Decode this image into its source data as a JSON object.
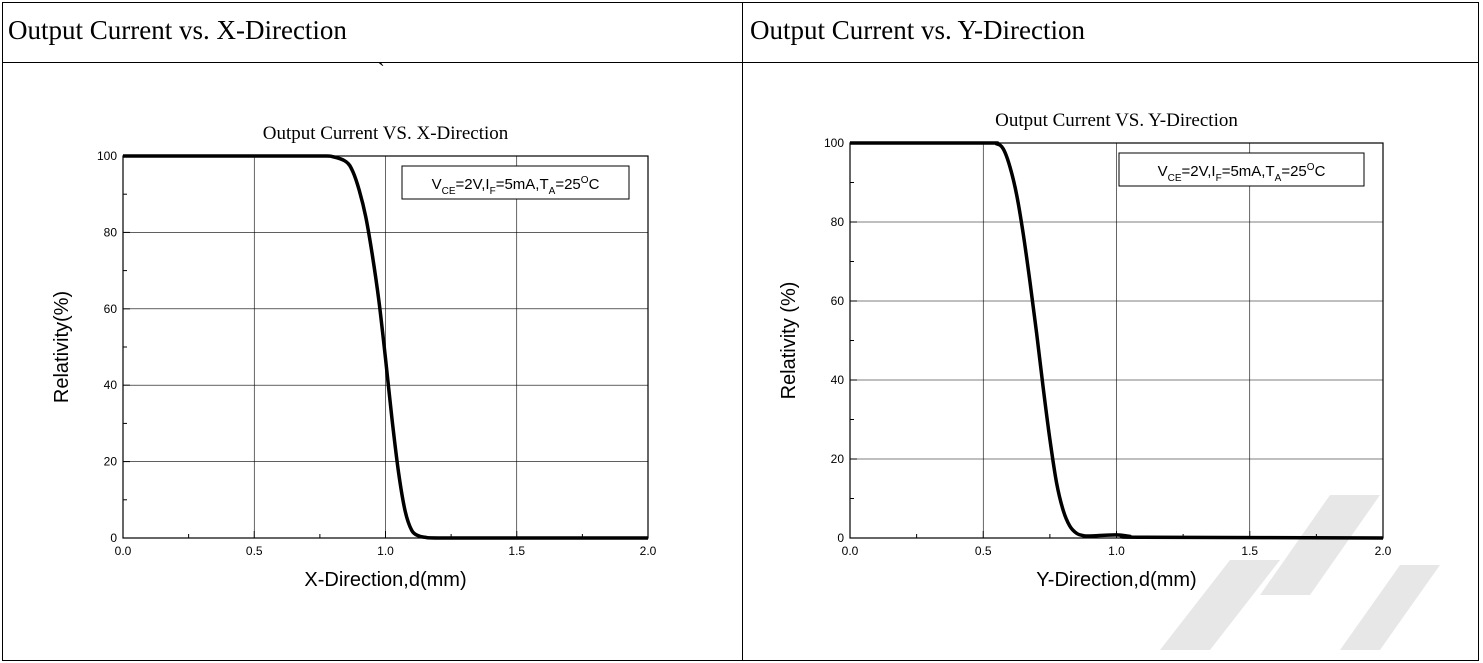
{
  "cells": {
    "left_title": "Output Current vs. X-Direction",
    "right_title": "Output Current vs. Y-Direction",
    "stray_mark": "`"
  },
  "chart_data": [
    {
      "type": "line",
      "title": "Output Current VS. X-Direction",
      "xlabel": "X-Direction,d(mm)",
      "ylabel": "Relativity(%)",
      "xlim": [
        0.0,
        2.0
      ],
      "ylim": [
        0,
        100
      ],
      "xticks": [
        "0.0",
        "0.5",
        "1.0",
        "1.5",
        "2.0"
      ],
      "yticks": [
        "0",
        "20",
        "40",
        "60",
        "80",
        "100"
      ],
      "grid": true,
      "legend_placement": "top-right",
      "annotation": {
        "V": "V",
        "CE": "CE",
        "eq1": "=2V,",
        "I": "I",
        "F": "F",
        "eq2": "=5mA,",
        "T": "T",
        "A": "A",
        "eq3": "=25",
        "O": "O",
        "C": "C"
      },
      "series": [
        {
          "x": [
            0.0,
            0.5,
            0.75,
            0.8,
            0.85,
            0.875,
            0.9,
            0.925,
            0.95,
            0.975,
            1.0,
            1.025,
            1.05,
            1.075,
            1.1,
            1.125,
            1.15,
            1.2,
            1.5,
            2.0
          ],
          "y": [
            100,
            100,
            100,
            99.8,
            98.5,
            96,
            91,
            84,
            74,
            62,
            47,
            31,
            17,
            7,
            2,
            0.6,
            0.2,
            0,
            0,
            0
          ]
        }
      ]
    },
    {
      "type": "line",
      "title": "Output Current VS. Y-Direction",
      "xlabel": "Y-Direction,d(mm)",
      "ylabel": "Relativity (%)",
      "xlim": [
        0.0,
        2.0
      ],
      "ylim": [
        0,
        100
      ],
      "xticks": [
        "0.0",
        "0.5",
        "1.0",
        "1.5",
        "2.0"
      ],
      "yticks": [
        "0",
        "20",
        "40",
        "60",
        "80",
        "100"
      ],
      "grid": true,
      "legend_placement": "top-right",
      "annotation": {
        "V": "V",
        "CE": "CE",
        "eq1": "=2V,",
        "I": "I",
        "F": "F",
        "eq2": "=5mA,",
        "T": "T",
        "A": "A",
        "eq3": "=25",
        "O": "O",
        "C": "C"
      },
      "series": [
        {
          "x": [
            0.0,
            0.5,
            0.55,
            0.575,
            0.6,
            0.625,
            0.65,
            0.675,
            0.7,
            0.725,
            0.75,
            0.775,
            0.8,
            0.825,
            0.85,
            0.875,
            0.9,
            1.0,
            1.05,
            1.1,
            2.0
          ],
          "y": [
            100,
            100,
            99.8,
            98.5,
            94,
            87,
            77,
            65,
            52,
            38,
            25,
            14,
            7,
            3,
            1.2,
            0.6,
            0.5,
            0.8,
            0.4,
            0.2,
            0
          ]
        }
      ]
    }
  ]
}
